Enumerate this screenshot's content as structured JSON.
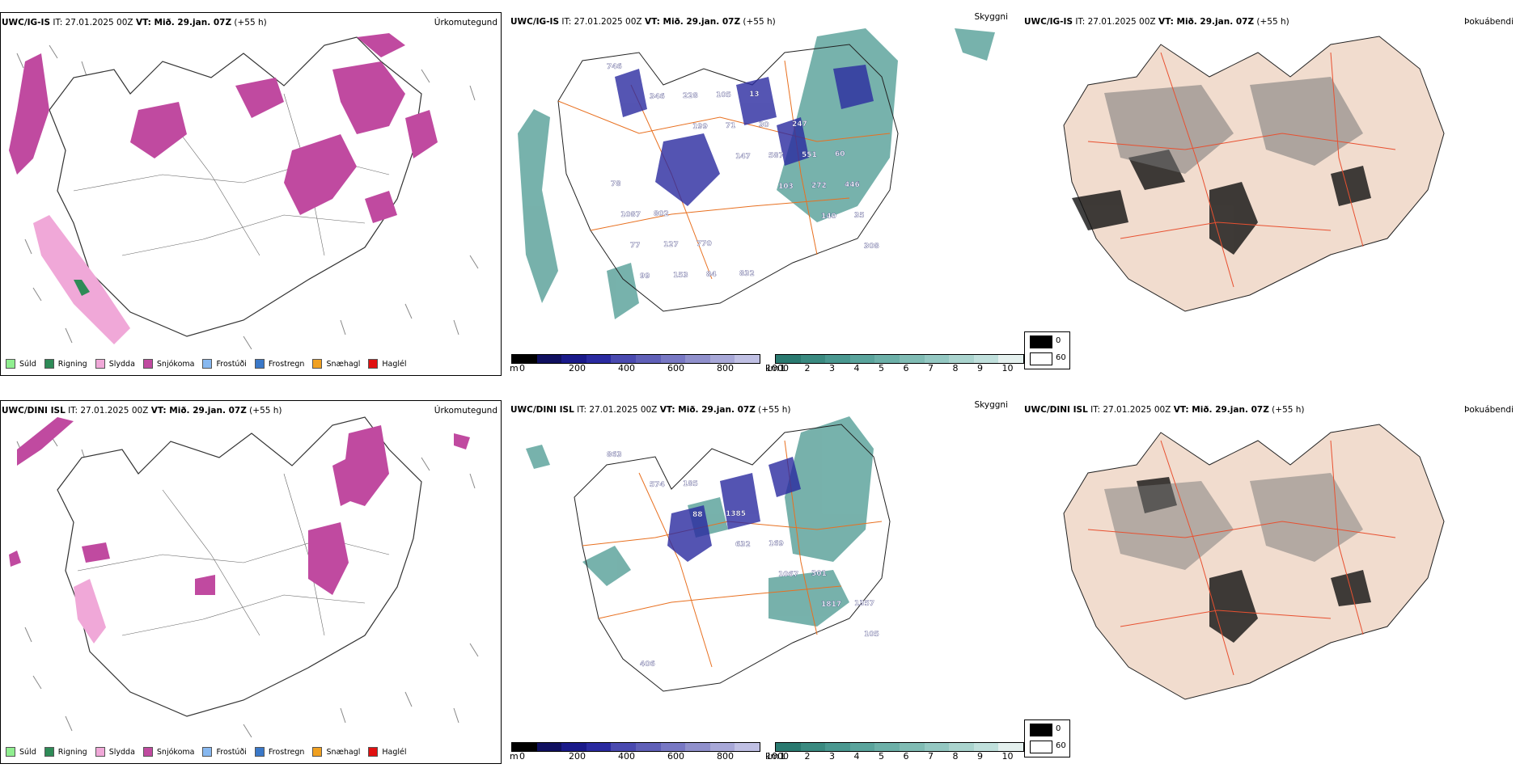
{
  "panels": [
    {
      "model": "UWC/IG-IS",
      "it": "IT: 27.01.2025 00Z",
      "vt": "VT: Mið. 29.jan. 07Z",
      "lead": "(+55 h)",
      "title": "Úrkomutegund"
    },
    {
      "model": "UWC/IG-IS",
      "it": "IT: 27.01.2025 00Z",
      "vt": "VT: Mið. 29.jan. 07Z",
      "lead": "(+55 h)",
      "title": "Skyggni"
    },
    {
      "model": "UWC/IG-IS",
      "it": "IT: 27.01.2025 00Z",
      "vt": "VT: Mið. 29.jan. 07Z",
      "lead": "(+55 h)",
      "title": "Þokuábendi"
    },
    {
      "model": "UWC/DINI ISL",
      "it": "IT: 27.01.2025 00Z",
      "vt": "VT: Mið. 29.jan. 07Z",
      "lead": "(+55 h)",
      "title": "Úrkomutegund"
    },
    {
      "model": "UWC/DINI ISL",
      "it": "IT: 27.01.2025 00Z",
      "vt": "VT: Mið. 29.jan. 07Z",
      "lead": "(+55 h)",
      "title": "Skyggni"
    },
    {
      "model": "UWC/DINI ISL",
      "it": "IT: 27.01.2025 00Z",
      "vt": "VT: Mið. 29.jan. 07Z",
      "lead": "(+55 h)",
      "title": "Þokuábendi"
    }
  ],
  "precip_legend": [
    {
      "label": "Súld",
      "color": "#90ee90"
    },
    {
      "label": "Rigning",
      "color": "#2e8b57"
    },
    {
      "label": "Slydda",
      "color": "#f0a8d8"
    },
    {
      "label": "Snjókoma",
      "color": "#c04aa0"
    },
    {
      "label": "Frostúði",
      "color": "#87b8f0"
    },
    {
      "label": "Frostregn",
      "color": "#3a78c8"
    },
    {
      "label": "Snæhagl",
      "color": "#f0a020"
    },
    {
      "label": "Haglél",
      "color": "#e01010"
    }
  ],
  "ceiling_bar": {
    "unit": "m",
    "ticks": [
      "0",
      "200",
      "400",
      "600",
      "800",
      "1000"
    ],
    "colors": [
      "#000000",
      "#101060",
      "#1a1a8a",
      "#2a2aa0",
      "#4a4ab0",
      "#6060b8",
      "#7878c4",
      "#9090cc",
      "#a8a8d8",
      "#c0c0e4"
    ]
  },
  "visibility_bar": {
    "unit": "km",
    "ticks": [
      "1",
      "2",
      "3",
      "4",
      "5",
      "6",
      "7",
      "8",
      "9",
      "10"
    ],
    "colors": [
      "#2a7a70",
      "#3a8a80",
      "#4a9890",
      "#5aa49c",
      "#6cb0a8",
      "#80bcb4",
      "#94c8c2",
      "#aad4ce",
      "#c0e0dc",
      "#e4f0ee"
    ]
  },
  "fog_legend": [
    {
      "label": "0",
      "color": "#000000"
    },
    {
      "label": "60",
      "color": "#ffffff"
    }
  ],
  "top_ceiling_labels": [
    "746",
    "346",
    "199",
    "147",
    "103",
    "140",
    "308",
    "99",
    "228",
    "71",
    "587",
    "272",
    "35",
    "77",
    "153",
    "105",
    "30",
    "551",
    "446",
    "1087",
    "127",
    "84",
    "13",
    "247",
    "60",
    "78",
    "802",
    "770",
    "832"
  ],
  "bottom_ceiling_labels": [
    "863",
    "574",
    "88",
    "632",
    "1067",
    "1817",
    "105",
    "406",
    "185",
    "1385",
    "169",
    "301",
    "1357"
  ],
  "colors": {
    "snow": "#c04aa0",
    "sleet": "#f0a8d8",
    "rain": "#2e8b57",
    "ceiling": "#2a2aa0",
    "visibility": "#4a9890",
    "land": "#f1dcce",
    "roads": "#e87020"
  }
}
